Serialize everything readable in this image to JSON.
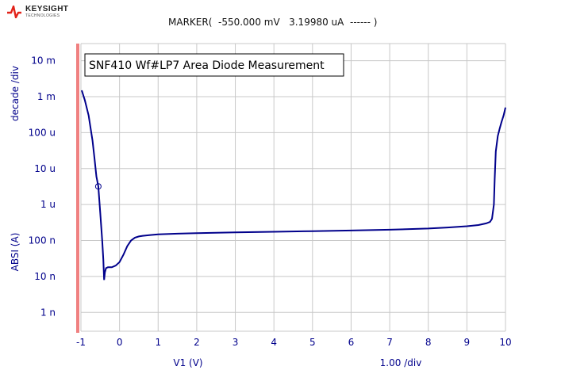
{
  "header": {
    "brand": "KEYSIGHT",
    "brand_sub": "TECHNOLOGIES",
    "marker_readout": "MARKER(  -550.000 mV   3.19980 uA  ------ )"
  },
  "colors": {
    "curve": "#00008b",
    "grid": "#c8c8c8",
    "left_bar": "#f08080",
    "logo": "#e2231a"
  },
  "chart_data": {
    "type": "line",
    "title": "SNF410 Wf#LP7 Area Diode Measurement",
    "xlabel": "V1 (V)",
    "x_scale_text": "1.00  /div",
    "ylabel_top": "decade /div",
    "ylabel_bottom": "ABSI (A)",
    "y_scale": "log",
    "xlim": [
      -1,
      10
    ],
    "ylim": [
      3e-10,
      0.03
    ],
    "grid": true,
    "x_ticks": [
      -1,
      0,
      1,
      2,
      3,
      4,
      5,
      6,
      7,
      8,
      9,
      10
    ],
    "x_tick_labels": [
      "-1",
      "0",
      "1",
      "2",
      "3",
      "4",
      "5",
      "6",
      "7",
      "8",
      "9",
      "10"
    ],
    "y_ticks": [
      0.01,
      0.001,
      0.0001,
      1e-05,
      1e-06,
      1e-07,
      1e-08,
      1e-09
    ],
    "y_tick_labels": [
      "10 m",
      "1 m",
      "100 u",
      "10 u",
      "1 u",
      "100 n",
      "10 n",
      "1 n"
    ],
    "marker": {
      "x": -0.55,
      "y": 3.1998e-06
    },
    "series": [
      {
        "x": [
          -0.98,
          -0.9,
          -0.8,
          -0.7,
          -0.65,
          -0.6,
          -0.55,
          -0.5,
          -0.45,
          -0.42,
          -0.4,
          -0.38,
          -0.35,
          -0.3,
          -0.2,
          -0.1,
          0.0,
          0.1,
          0.2,
          0.3,
          0.4,
          0.5,
          0.6,
          0.8,
          1.0,
          1.5,
          2.0,
          3.0,
          4.0,
          5.0,
          6.0,
          7.0,
          8.0,
          8.5,
          9.0,
          9.3,
          9.5,
          9.6,
          9.65,
          9.7,
          9.72,
          9.75,
          9.8,
          9.85,
          9.9,
          9.95,
          10.0
        ],
        "y": [
          0.0015,
          0.0008,
          0.0003,
          6e-05,
          2e-05,
          6e-06,
          3.2e-06,
          6e-07,
          1e-07,
          3e-08,
          8e-09,
          1.3e-08,
          1.7e-08,
          1.8e-08,
          1.8e-08,
          2e-08,
          2.5e-08,
          4e-08,
          7e-08,
          1e-07,
          1.2e-07,
          1.3e-07,
          1.35e-07,
          1.42e-07,
          1.48e-07,
          1.55e-07,
          1.6e-07,
          1.68e-07,
          1.75e-07,
          1.82e-07,
          1.9e-07,
          2e-07,
          2.15e-07,
          2.3e-07,
          2.5e-07,
          2.7e-07,
          3e-07,
          3.3e-07,
          4e-07,
          1e-06,
          5e-06,
          3e-05,
          8e-05,
          0.00013,
          0.0002,
          0.0003,
          0.0005
        ]
      }
    ]
  }
}
